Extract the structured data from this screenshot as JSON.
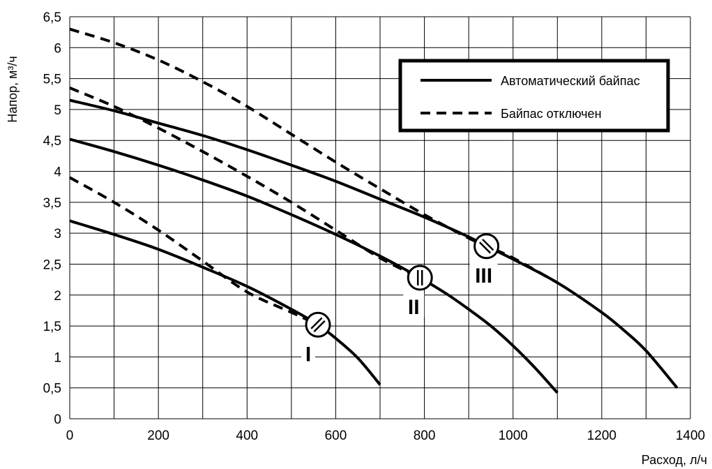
{
  "chart_data": {
    "type": "line",
    "xlabel": "Расход, л/ч",
    "ylabel": "Напор, м³/ч",
    "xlim": [
      0,
      1400
    ],
    "ylim": [
      0,
      6.5
    ],
    "x_ticks": [
      0,
      200,
      400,
      600,
      800,
      1000,
      1200,
      1400
    ],
    "x_tick_labels": [
      "0",
      "200",
      "400",
      "600",
      "800",
      "1000",
      "1200",
      "1400"
    ],
    "y_ticks": [
      0,
      0.5,
      1,
      1.5,
      2,
      2.5,
      3,
      3.5,
      4,
      4.5,
      5,
      5.5,
      6,
      6.5
    ],
    "y_tick_labels": [
      "0",
      "0,5",
      "1",
      "1,5",
      "2",
      "2,5",
      "3",
      "3,5",
      "4",
      "4,5",
      "5",
      "5,5",
      "6",
      "6,5"
    ],
    "grid": true,
    "legend_position": "top-right",
    "legend": [
      {
        "label": "Автоматический байпас",
        "style": "solid"
      },
      {
        "label": "Байпас отключен",
        "style": "dashed"
      }
    ],
    "series": [
      {
        "legend_label": "Автоматический байпас",
        "speed": "I",
        "style": "solid",
        "x": [
          0,
          100,
          200,
          300,
          400,
          500,
          560,
          600,
          650,
          700
        ],
        "y": [
          3.2,
          2.98,
          2.74,
          2.45,
          2.14,
          1.77,
          1.52,
          1.3,
          0.98,
          0.55
        ]
      },
      {
        "legend_label": "Автоматический байпас",
        "speed": "II",
        "style": "solid",
        "x": [
          0,
          100,
          200,
          300,
          400,
          500,
          600,
          700,
          790,
          850,
          900,
          950,
          1000,
          1050,
          1100
        ],
        "y": [
          4.52,
          4.32,
          4.1,
          3.86,
          3.6,
          3.3,
          2.98,
          2.63,
          2.28,
          2.02,
          1.77,
          1.5,
          1.18,
          0.82,
          0.42
        ]
      },
      {
        "legend_label": "Автоматический байпас",
        "speed": "III",
        "style": "solid",
        "x": [
          0,
          100,
          200,
          300,
          400,
          500,
          600,
          700,
          800,
          900,
          940,
          1000,
          1100,
          1200,
          1250,
          1300,
          1370
        ],
        "y": [
          5.15,
          4.98,
          4.78,
          4.58,
          4.35,
          4.1,
          3.84,
          3.55,
          3.26,
          2.94,
          2.79,
          2.58,
          2.2,
          1.72,
          1.43,
          1.1,
          0.5
        ]
      },
      {
        "legend_label": "Байпас отключен",
        "speed": "I",
        "style": "dashed",
        "x": [
          0,
          100,
          200,
          300,
          400,
          500,
          560
        ],
        "y": [
          3.9,
          3.5,
          3.05,
          2.55,
          2.05,
          1.72,
          1.52
        ]
      },
      {
        "legend_label": "Байпас отключен",
        "speed": "II",
        "style": "dashed",
        "x": [
          0,
          100,
          200,
          300,
          400,
          500,
          600,
          700,
          790
        ],
        "y": [
          5.35,
          5.05,
          4.7,
          4.32,
          3.92,
          3.5,
          3.05,
          2.6,
          2.28
        ]
      },
      {
        "legend_label": "Байпас отключен",
        "speed": "III",
        "style": "dashed",
        "x": [
          0,
          100,
          200,
          300,
          400,
          500,
          600,
          700,
          800,
          900,
          940,
          1000,
          1100
        ],
        "y": [
          6.3,
          6.08,
          5.8,
          5.45,
          5.05,
          4.6,
          4.15,
          3.72,
          3.3,
          2.92,
          2.79,
          2.6,
          2.2
        ]
      }
    ],
    "markers": [
      {
        "speed": "I",
        "x": 560,
        "y": 1.52,
        "glyph": "slash"
      },
      {
        "speed": "II",
        "x": 790,
        "y": 2.28,
        "glyph": "vertical"
      },
      {
        "speed": "III",
        "x": 940,
        "y": 2.79,
        "glyph": "backslash"
      }
    ]
  }
}
